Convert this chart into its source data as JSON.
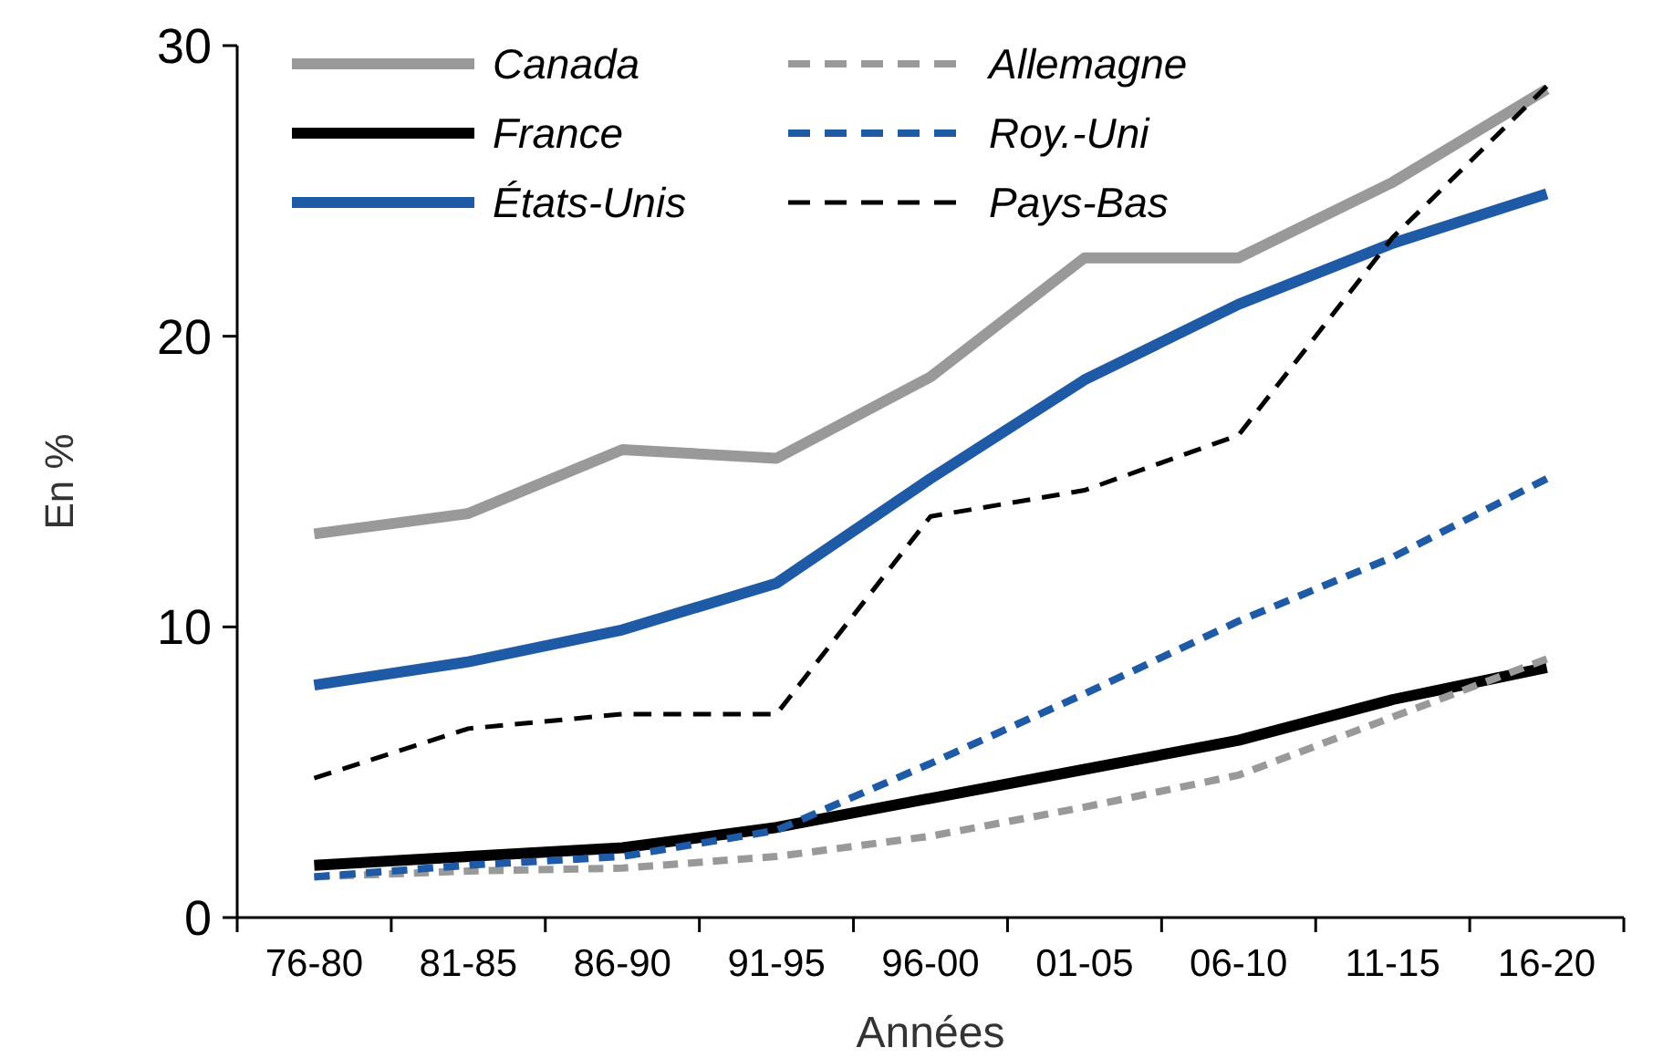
{
  "chart_data": {
    "type": "line",
    "xlabel": "Années",
    "ylabel": "En %",
    "categories": [
      "76-80",
      "81-85",
      "86-90",
      "91-95",
      "96-00",
      "01-05",
      "06-10",
      "11-15",
      "16-20"
    ],
    "ylim": [
      0,
      30
    ],
    "yticks": [
      0,
      10,
      20,
      30
    ],
    "grid": false,
    "legend": "top left",
    "marker": "none",
    "series": [
      {
        "name": "Canada",
        "color": "#999999",
        "line_style": "solid",
        "values": [
          13.2,
          13.9,
          16.1,
          15.8,
          18.6,
          22.7,
          22.7,
          25.3,
          28.5
        ]
      },
      {
        "name": "France",
        "color": "#000000",
        "line_style": "solid",
        "values": [
          1.8,
          2.1,
          2.4,
          3.1,
          4.1,
          5.1,
          6.1,
          7.5,
          8.6
        ]
      },
      {
        "name": "États-Unis",
        "color": "#1f5aa6",
        "line_style": "solid",
        "values": [
          8.0,
          8.8,
          9.9,
          11.5,
          15.1,
          18.5,
          21.1,
          23.2,
          24.9
        ]
      },
      {
        "name": "Allemagne",
        "color": "#999999",
        "line_style": "dashed",
        "values": [
          1.4,
          1.6,
          1.7,
          2.1,
          2.8,
          3.8,
          4.9,
          6.9,
          8.9
        ]
      },
      {
        "name": "Roy.-Uni",
        "color": "#1f5aa6",
        "line_style": "dashed",
        "values": [
          1.4,
          1.8,
          2.1,
          3.0,
          5.3,
          7.7,
          10.2,
          12.4,
          15.1
        ]
      },
      {
        "name": "Pays-Bas",
        "color": "#000000",
        "line_style": "dashed",
        "values": [
          4.8,
          6.5,
          7.0,
          7.0,
          13.8,
          14.7,
          16.6,
          23.4,
          28.6
        ]
      }
    ]
  }
}
